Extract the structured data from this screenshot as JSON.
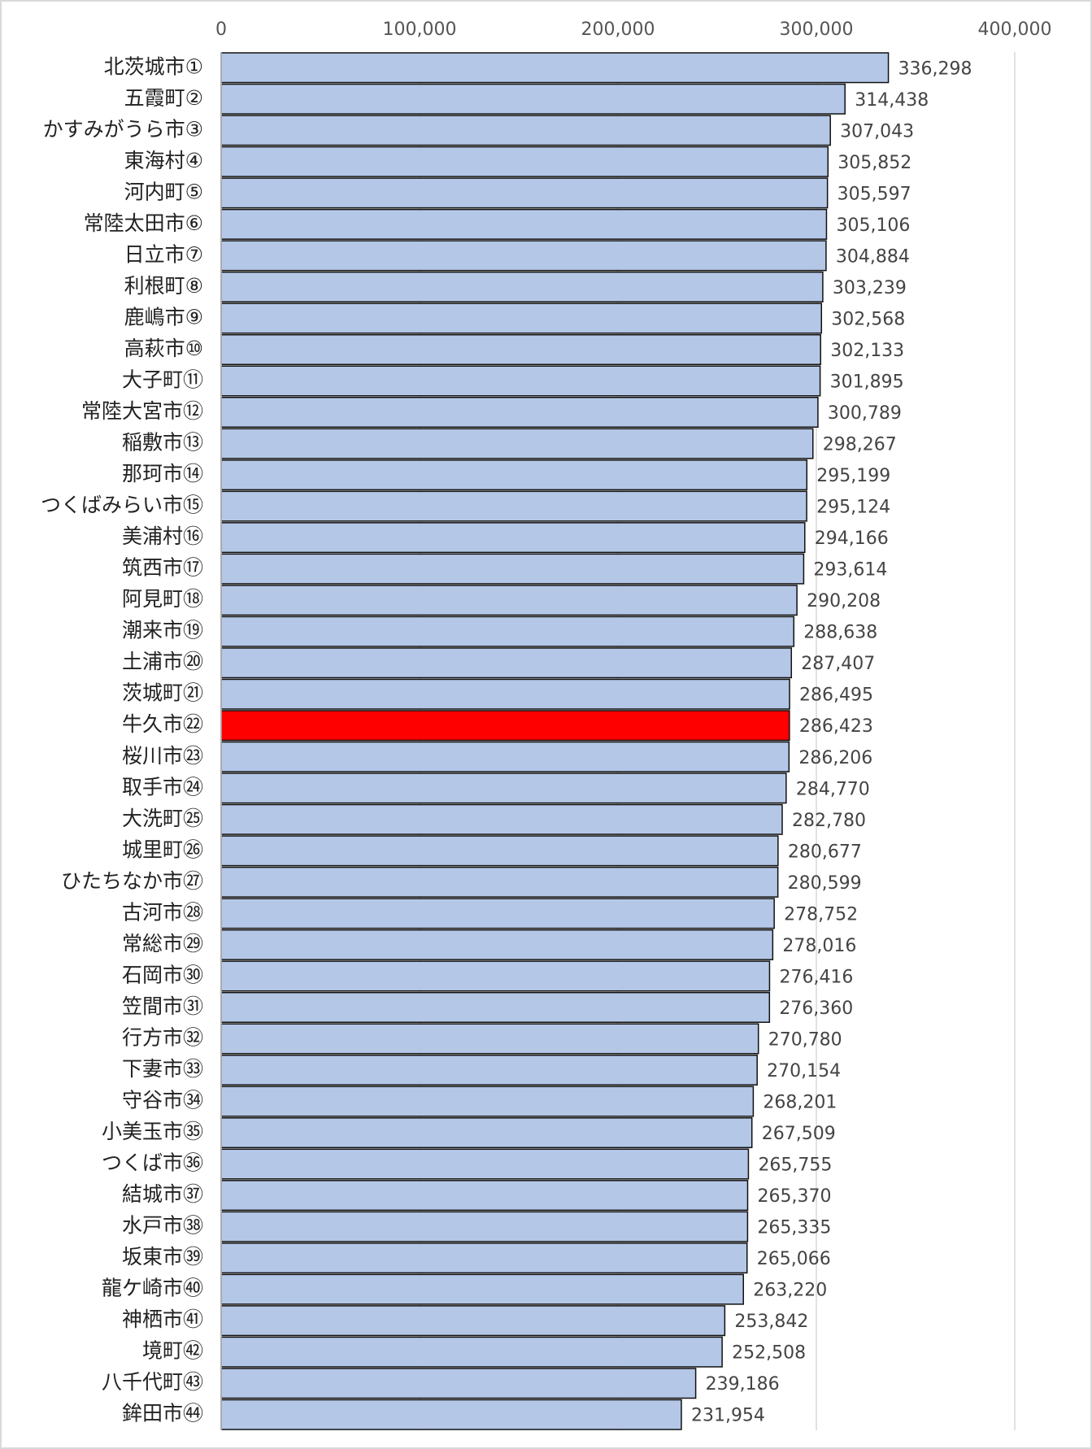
{
  "chart_data": {
    "type": "barh",
    "categories": [
      "北茨城市①",
      "五霞町②",
      "かすみがうら市③",
      "東海村④",
      "河内町⑤",
      "常陸太田市⑥",
      "日立市⑦",
      "利根町⑧",
      "鹿嶋市⑨",
      "高萩市⑩",
      "大子町⑪",
      "常陸大宮市⑫",
      "稲敷市⑬",
      "那珂市⑭",
      "つくばみらい市⑮",
      "美浦村⑯",
      "筑西市⑰",
      "阿見町⑱",
      "潮来市⑲",
      "土浦市⑳",
      "茨城町㉑",
      "牛久市㉒",
      "桜川市㉓",
      "取手市㉔",
      "大洗町㉕",
      "城里町㉖",
      "ひたちなか市㉗",
      "古河市㉘",
      "常総市㉙",
      "石岡市㉚",
      "笠間市㉛",
      "行方市㉜",
      "下妻市㉝",
      "守谷市㉞",
      "小美玉市㉟",
      "つくば市㊱",
      "結城市㊲",
      "水戸市㊳",
      "坂東市㊴",
      "龍ケ崎市㊵",
      "神栖市㊶",
      "境町㊷",
      "八千代町㊸",
      "鉾田市㊹"
    ],
    "values": [
      336298,
      314438,
      307043,
      305852,
      305597,
      305106,
      304884,
      303239,
      302568,
      302133,
      301895,
      300789,
      298267,
      295199,
      295124,
      294166,
      293614,
      290208,
      288638,
      287407,
      286495,
      286423,
      286206,
      284770,
      282780,
      280677,
      280599,
      278752,
      278016,
      276416,
      276360,
      270780,
      270154,
      268201,
      267509,
      265755,
      265370,
      265335,
      265066,
      263220,
      253842,
      252508,
      239186,
      231954
    ],
    "value_labels": [
      "336,298",
      "314,438",
      "307,043",
      "305,852",
      "305,597",
      "305,106",
      "304,884",
      "303,239",
      "302,568",
      "302,133",
      "301,895",
      "300,789",
      "298,267",
      "295,199",
      "295,124",
      "294,166",
      "293,614",
      "290,208",
      "288,638",
      "287,407",
      "286,495",
      "286,423",
      "286,206",
      "284,770",
      "282,780",
      "280,677",
      "280,599",
      "278,752",
      "278,016",
      "276,416",
      "276,360",
      "270,780",
      "270,154",
      "268,201",
      "267,509",
      "265,755",
      "265,370",
      "265,335",
      "265,066",
      "263,220",
      "253,842",
      "252,508",
      "239,186",
      "231,954"
    ],
    "colors": [
      "#b4c7e7",
      "#b4c7e7",
      "#b4c7e7",
      "#b4c7e7",
      "#b4c7e7",
      "#b4c7e7",
      "#b4c7e7",
      "#b4c7e7",
      "#b4c7e7",
      "#b4c7e7",
      "#b4c7e7",
      "#b4c7e7",
      "#b4c7e7",
      "#b4c7e7",
      "#b4c7e7",
      "#b4c7e7",
      "#b4c7e7",
      "#b4c7e7",
      "#b4c7e7",
      "#b4c7e7",
      "#b4c7e7",
      "#ff0000",
      "#b4c7e7",
      "#b4c7e7",
      "#b4c7e7",
      "#b4c7e7",
      "#b4c7e7",
      "#b4c7e7",
      "#b4c7e7",
      "#b4c7e7",
      "#b4c7e7",
      "#b4c7e7",
      "#b4c7e7",
      "#b4c7e7",
      "#b4c7e7",
      "#b4c7e7",
      "#b4c7e7",
      "#b4c7e7",
      "#b4c7e7",
      "#b4c7e7",
      "#b4c7e7",
      "#b4c7e7",
      "#b4c7e7",
      "#b4c7e7"
    ],
    "xlim": [
      0,
      400000
    ],
    "xticks": [
      0,
      {
        "value": 100000,
        "label": "100,000"
      },
      {
        "value": 200000,
        "label": "200,000"
      },
      {
        "value": 300000,
        "label": "300,000"
      },
      {
        "value": 400000,
        "label": "400,000"
      }
    ],
    "grid": true
  }
}
